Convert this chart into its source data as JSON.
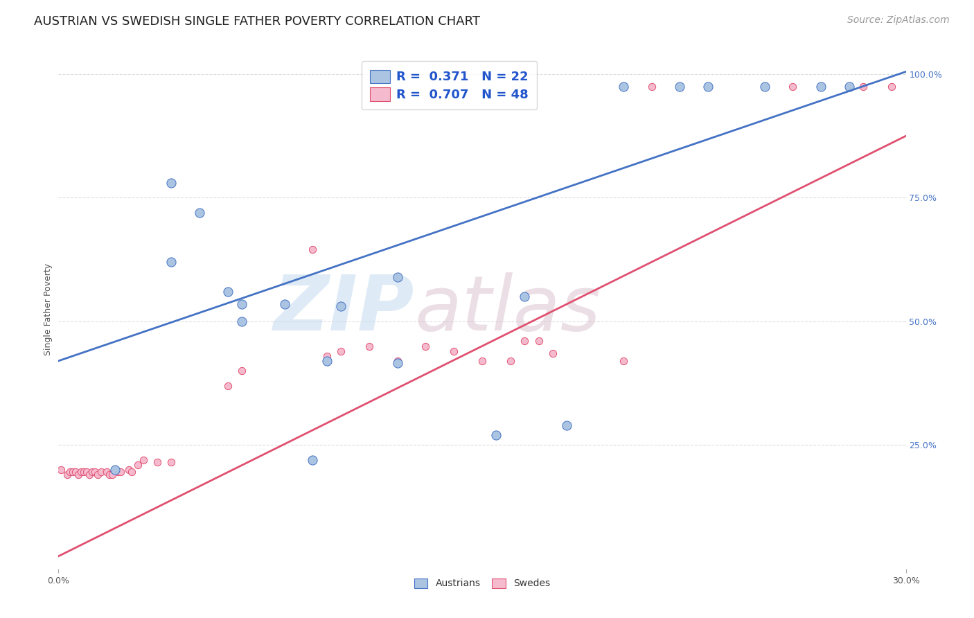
{
  "title": "AUSTRIAN VS SWEDISH SINGLE FATHER POVERTY CORRELATION CHART",
  "source": "Source: ZipAtlas.com",
  "ylabel": "Single Father Poverty",
  "watermark_zip": "ZIP",
  "watermark_atlas": "atlas",
  "austrians_color": "#aac4e2",
  "swedes_color": "#f5bace",
  "line_austrians_color": "#4472c4",
  "line_swedes_color": "#e05070",
  "legend_text_color": "#2255cc",
  "austrians_x": [
    0.02,
    0.04,
    0.04,
    0.05,
    0.06,
    0.065,
    0.065,
    0.08,
    0.09,
    0.095,
    0.1,
    0.12,
    0.12,
    0.155,
    0.165,
    0.18,
    0.2,
    0.22,
    0.23,
    0.25,
    0.27,
    0.28
  ],
  "austrians_y": [
    0.2,
    0.62,
    0.78,
    0.72,
    0.56,
    0.535,
    0.5,
    0.535,
    0.22,
    0.42,
    0.53,
    0.415,
    0.59,
    0.27,
    0.55,
    0.29,
    0.975,
    0.975,
    0.975,
    0.975,
    0.975,
    0.975
  ],
  "swedes_x": [
    0.001,
    0.003,
    0.004,
    0.005,
    0.006,
    0.007,
    0.008,
    0.009,
    0.01,
    0.011,
    0.012,
    0.013,
    0.014,
    0.015,
    0.017,
    0.018,
    0.019,
    0.021,
    0.022,
    0.025,
    0.026,
    0.028,
    0.03,
    0.035,
    0.04,
    0.06,
    0.065,
    0.09,
    0.095,
    0.1,
    0.11,
    0.12,
    0.13,
    0.14,
    0.15,
    0.16,
    0.165,
    0.17,
    0.175,
    0.2,
    0.21,
    0.22,
    0.23,
    0.25,
    0.26,
    0.27,
    0.285,
    0.295
  ],
  "swedes_y": [
    0.2,
    0.19,
    0.195,
    0.195,
    0.195,
    0.19,
    0.195,
    0.195,
    0.195,
    0.19,
    0.195,
    0.195,
    0.19,
    0.195,
    0.195,
    0.19,
    0.19,
    0.195,
    0.195,
    0.2,
    0.195,
    0.21,
    0.22,
    0.215,
    0.215,
    0.37,
    0.4,
    0.645,
    0.43,
    0.44,
    0.45,
    0.42,
    0.45,
    0.44,
    0.42,
    0.42,
    0.46,
    0.46,
    0.435,
    0.42,
    0.975,
    0.975,
    0.975,
    0.975,
    0.975,
    0.975,
    0.975,
    0.975
  ],
  "line_a_x0": 0.0,
  "line_a_y0": 0.42,
  "line_a_x1": 0.3,
  "line_a_y1": 1.005,
  "line_s_x0": 0.0,
  "line_s_y0": 0.025,
  "line_s_x1": 0.3,
  "line_s_y1": 0.875,
  "austrians_size": 90,
  "swedes_size": 55,
  "xlim": [
    0.0,
    0.3
  ],
  "ylim": [
    0.0,
    1.05
  ],
  "grid_color": "#dddddd",
  "background_color": "#ffffff",
  "title_fontsize": 13,
  "axis_label_fontsize": 9,
  "tick_fontsize": 9,
  "legend_fontsize": 13,
  "source_fontsize": 10
}
